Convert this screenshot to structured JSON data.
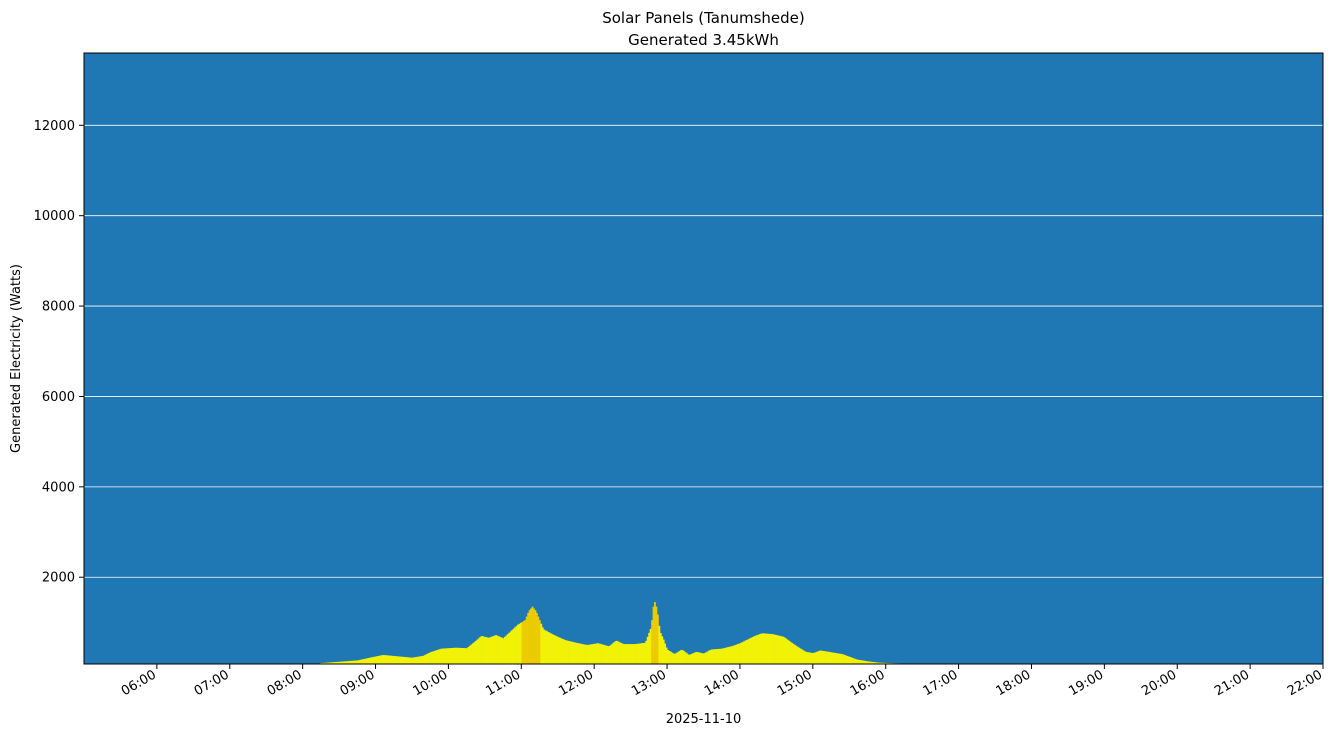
{
  "chart_data": {
    "type": "bar",
    "title": "Solar Panels (Tanumshede)",
    "subtitle": "Generated 3.45kWh",
    "xlabel": "2025-11-10",
    "ylabel": "Generated Electricity (Watts)",
    "x_unit": "hours",
    "xlim": [
      5.0,
      22.0
    ],
    "ylim": [
      80,
      13600
    ],
    "grid": "horizontal",
    "background_color": "#1f77b4",
    "gridline_color": "#ffffff",
    "bar_color_low": "#f2f207",
    "bar_color_high": "#eccb00",
    "x_ticks": [
      {
        "value": 6,
        "label": "06:00"
      },
      {
        "value": 7,
        "label": "07:00"
      },
      {
        "value": 8,
        "label": "08:00"
      },
      {
        "value": 9,
        "label": "09:00"
      },
      {
        "value": 10,
        "label": "10:00"
      },
      {
        "value": 11,
        "label": "11:00"
      },
      {
        "value": 12,
        "label": "12:00"
      },
      {
        "value": 13,
        "label": "13:00"
      },
      {
        "value": 14,
        "label": "14:00"
      },
      {
        "value": 15,
        "label": "15:00"
      },
      {
        "value": 16,
        "label": "16:00"
      },
      {
        "value": 17,
        "label": "17:00"
      },
      {
        "value": 18,
        "label": "18:00"
      },
      {
        "value": 19,
        "label": "19:00"
      },
      {
        "value": 20,
        "label": "20:00"
      },
      {
        "value": 21,
        "label": "21:00"
      },
      {
        "value": 22,
        "label": "22:00"
      }
    ],
    "y_ticks": [
      {
        "value": 2000,
        "label": "2000"
      },
      {
        "value": 4000,
        "label": "4000"
      },
      {
        "value": 6000,
        "label": "6000"
      },
      {
        "value": 8000,
        "label": "8000"
      },
      {
        "value": 10000,
        "label": "10000"
      },
      {
        "value": 12000,
        "label": "12000"
      }
    ],
    "points": [
      {
        "x": 8.25,
        "y": 100
      },
      {
        "x": 8.5,
        "y": 130
      },
      {
        "x": 8.75,
        "y": 160
      },
      {
        "x": 8.95,
        "y": 230
      },
      {
        "x": 9.1,
        "y": 280
      },
      {
        "x": 9.3,
        "y": 250
      },
      {
        "x": 9.5,
        "y": 220
      },
      {
        "x": 9.65,
        "y": 260
      },
      {
        "x": 9.75,
        "y": 340
      },
      {
        "x": 9.9,
        "y": 420
      },
      {
        "x": 10.1,
        "y": 440
      },
      {
        "x": 10.25,
        "y": 430
      },
      {
        "x": 10.35,
        "y": 560
      },
      {
        "x": 10.45,
        "y": 700
      },
      {
        "x": 10.55,
        "y": 660
      },
      {
        "x": 10.65,
        "y": 720
      },
      {
        "x": 10.75,
        "y": 650
      },
      {
        "x": 10.85,
        "y": 800
      },
      {
        "x": 10.95,
        "y": 950
      },
      {
        "x": 11.05,
        "y": 1050
      },
      {
        "x": 11.1,
        "y": 1250
      },
      {
        "x": 11.15,
        "y": 1350
      },
      {
        "x": 11.2,
        "y": 1250
      },
      {
        "x": 11.25,
        "y": 1050
      },
      {
        "x": 11.3,
        "y": 850
      },
      {
        "x": 11.4,
        "y": 760
      },
      {
        "x": 11.5,
        "y": 680
      },
      {
        "x": 11.6,
        "y": 610
      },
      {
        "x": 11.75,
        "y": 550
      },
      {
        "x": 11.9,
        "y": 500
      },
      {
        "x": 12.05,
        "y": 540
      },
      {
        "x": 12.2,
        "y": 470
      },
      {
        "x": 12.3,
        "y": 600
      },
      {
        "x": 12.4,
        "y": 520
      },
      {
        "x": 12.55,
        "y": 520
      },
      {
        "x": 12.7,
        "y": 550
      },
      {
        "x": 12.78,
        "y": 900
      },
      {
        "x": 12.82,
        "y": 1500
      },
      {
        "x": 12.86,
        "y": 1300
      },
      {
        "x": 12.9,
        "y": 800
      },
      {
        "x": 12.95,
        "y": 620
      },
      {
        "x": 13.0,
        "y": 400
      },
      {
        "x": 13.1,
        "y": 300
      },
      {
        "x": 13.2,
        "y": 400
      },
      {
        "x": 13.3,
        "y": 280
      },
      {
        "x": 13.4,
        "y": 350
      },
      {
        "x": 13.5,
        "y": 310
      },
      {
        "x": 13.6,
        "y": 400
      },
      {
        "x": 13.75,
        "y": 420
      },
      {
        "x": 13.9,
        "y": 480
      },
      {
        "x": 14.0,
        "y": 540
      },
      {
        "x": 14.1,
        "y": 620
      },
      {
        "x": 14.2,
        "y": 700
      },
      {
        "x": 14.3,
        "y": 760
      },
      {
        "x": 14.45,
        "y": 740
      },
      {
        "x": 14.6,
        "y": 680
      },
      {
        "x": 14.7,
        "y": 560
      },
      {
        "x": 14.8,
        "y": 450
      },
      {
        "x": 14.9,
        "y": 350
      },
      {
        "x": 15.0,
        "y": 320
      },
      {
        "x": 15.1,
        "y": 380
      },
      {
        "x": 15.25,
        "y": 340
      },
      {
        "x": 15.4,
        "y": 300
      },
      {
        "x": 15.5,
        "y": 240
      },
      {
        "x": 15.6,
        "y": 180
      },
      {
        "x": 15.75,
        "y": 140
      },
      {
        "x": 15.9,
        "y": 110
      },
      {
        "x": 16.1,
        "y": 95
      },
      {
        "x": 16.4,
        "y": 85
      }
    ]
  }
}
